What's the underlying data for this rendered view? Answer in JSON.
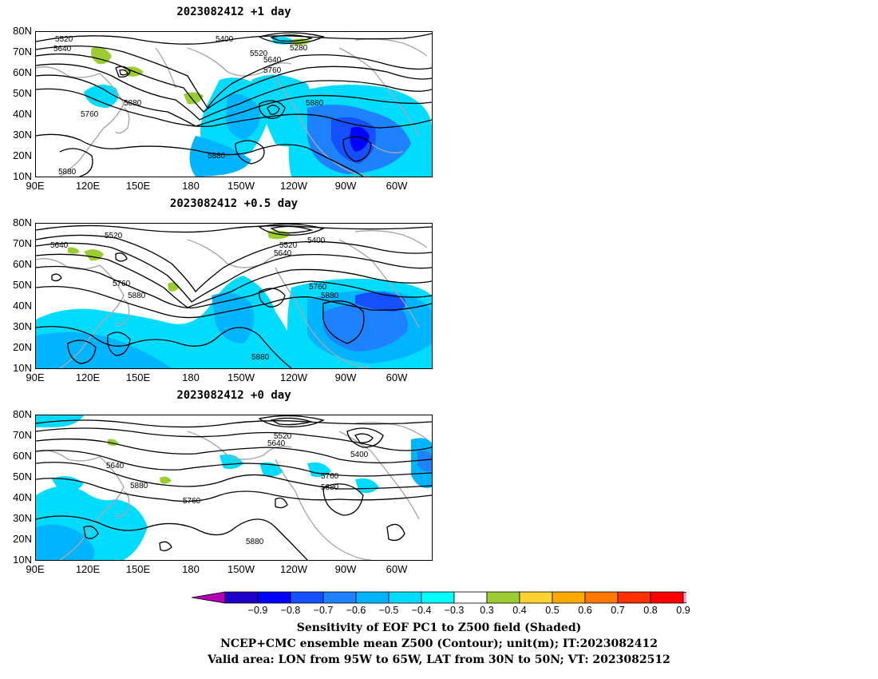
{
  "panels": [
    {
      "title": "2023082412  +1 day",
      "lat_labels": [
        "80N",
        "70N",
        "60N",
        "50N",
        "40N",
        "30N",
        "20N",
        "10N"
      ],
      "lon_labels": [
        "90E",
        "120E",
        "150E",
        "180",
        "150W",
        "120W",
        "90W",
        "60W"
      ],
      "contour_labels": [
        "5520",
        "5640",
        "5400",
        "5520",
        "5640",
        "5280",
        "5760",
        "5880",
        "5760",
        "5880",
        "5880",
        "5880"
      ]
    },
    {
      "title": "2023082412  +0.5 day",
      "lat_labels": [
        "80N",
        "70N",
        "60N",
        "50N",
        "40N",
        "30N",
        "20N",
        "10N"
      ],
      "lon_labels": [
        "90E",
        "120E",
        "150E",
        "180",
        "150W",
        "120W",
        "90W",
        "60W"
      ],
      "contour_labels": [
        "5640",
        "5520",
        "5520",
        "5400",
        "5640",
        "5760",
        "5880",
        "5760",
        "5880",
        "5880"
      ]
    },
    {
      "title": "2023082412  +0 day",
      "lat_labels": [
        "80N",
        "70N",
        "60N",
        "50N",
        "40N",
        "30N",
        "20N",
        "10N"
      ],
      "lon_labels": [
        "90E",
        "120E",
        "150E",
        "180",
        "150W",
        "120W",
        "90W",
        "60W"
      ],
      "contour_labels": [
        "5520",
        "5640",
        "5400",
        "5640",
        "5880",
        "5760",
        "5760",
        "5880",
        "5880"
      ]
    }
  ],
  "colorbar": {
    "ticks": [
      "−0.9",
      "−0.8",
      "−0.7",
      "−0.6",
      "−0.5",
      "−0.4",
      "−0.3",
      "0.3",
      "0.4",
      "0.5",
      "0.6",
      "0.7",
      "0.8",
      "0.9"
    ],
    "colors": [
      "#b400b4",
      "#1e00c8",
      "#0000ff",
      "#1450ff",
      "#1e82ff",
      "#00b4ff",
      "#00dcff",
      "#00ffff",
      "#ffffff",
      "#9bcd32",
      "#ffd232",
      "#ffaa00",
      "#ff7800",
      "#ff3200",
      "#ff0000",
      "#ffa0c8"
    ]
  },
  "captions": {
    "line1": "Sensitivity of EOF PC1 to Z500 field (Shaded)",
    "line2": "NCEP+CMC ensemble mean Z500 (Contour); unit(m); IT:2023082412",
    "line3": "Valid area: LON from 95W to 65W, LAT from 30N to 50N; VT: 2023082512"
  }
}
